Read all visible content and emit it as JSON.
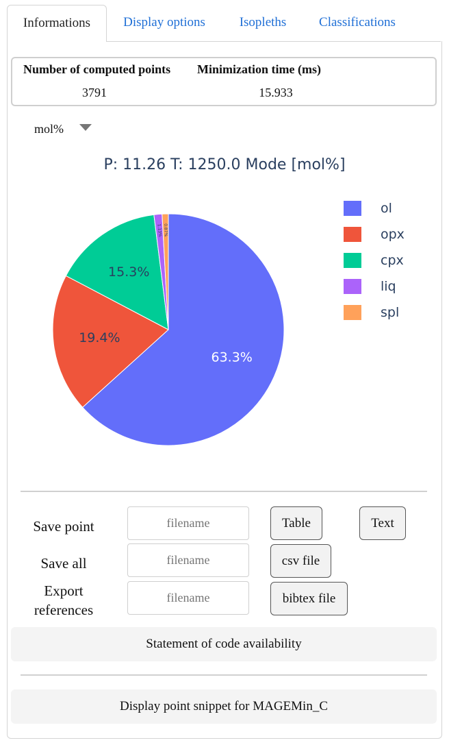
{
  "tabs": [
    {
      "label": "Informations",
      "active": true
    },
    {
      "label": "Display options"
    },
    {
      "label": "Isopleths"
    },
    {
      "label": "Classifications"
    }
  ],
  "info": {
    "headers": [
      "Number of computed points",
      "Minimization time (ms)"
    ],
    "values": [
      "3791",
      "15.933"
    ]
  },
  "unit_select": {
    "value": "mol%"
  },
  "chart_data": {
    "type": "pie",
    "title": "P: 11.26 T: 1250.0 Mode [mol%]",
    "labels": [
      "ol",
      "opx",
      "cpx",
      "liq",
      "spl"
    ],
    "values": [
      63.3,
      19.4,
      15.3,
      1.13,
      0.87
    ],
    "slice_labels": [
      "63.3%",
      "19.4%",
      "15.3%",
      "1.13%",
      "0.87%"
    ],
    "colors": [
      "#636efa",
      "#ef553b",
      "#00cc96",
      "#ab63fa",
      "#ffa15a"
    ],
    "legend_position": "right",
    "direction": "clockwise",
    "start": "top"
  },
  "export": {
    "save_point_label": "Save point",
    "save_all_label": "Save all",
    "export_refs_label_1": "Export",
    "export_refs_label_2": "references",
    "filename_placeholder": "filename",
    "table_button": "Table",
    "text_button": "Text",
    "csv_button": "csv file",
    "bibtex_button": "bibtex file"
  },
  "statement_button": "Statement of code availability",
  "snippet_button": "Display point snippet for MAGEMin_C"
}
